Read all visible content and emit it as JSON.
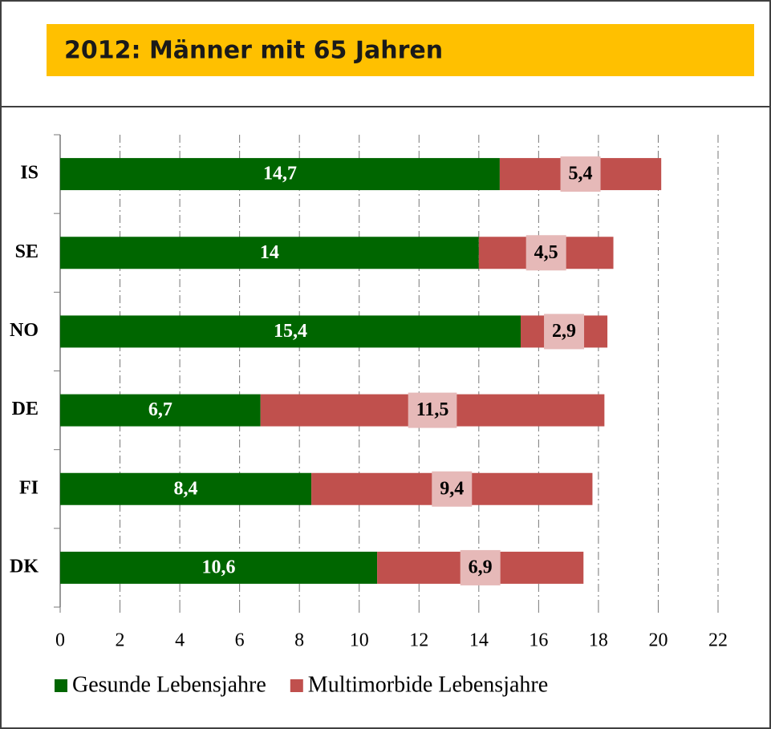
{
  "chart_data": {
    "type": "stacked-barh",
    "title": "2012: Männer mit 65 Jahren",
    "categories": [
      "IS",
      "SE",
      "NO",
      "DE",
      "FI",
      "DK"
    ],
    "series": [
      {
        "name": "Gesunde Lebensjahre",
        "color": "#006600",
        "values": [
          14.7,
          14,
          15.4,
          6.7,
          8.4,
          10.6
        ],
        "value_labels": [
          "14,7",
          "14",
          "15,4",
          "6,7",
          "8,4",
          "10,6"
        ]
      },
      {
        "name": "Multimorbide Lebensjahre",
        "color": "#c0504d",
        "values": [
          5.4,
          4.5,
          2.9,
          11.5,
          9.4,
          6.9
        ],
        "value_labels": [
          "5,4",
          "4,5",
          "2,9",
          "11,5",
          "9,4",
          "6,9"
        ]
      }
    ],
    "xlim": [
      0,
      22
    ],
    "xticks": [
      0,
      2,
      4,
      6,
      8,
      10,
      12,
      14,
      16,
      18,
      20,
      22
    ],
    "grid": true,
    "legend": "bottom"
  }
}
